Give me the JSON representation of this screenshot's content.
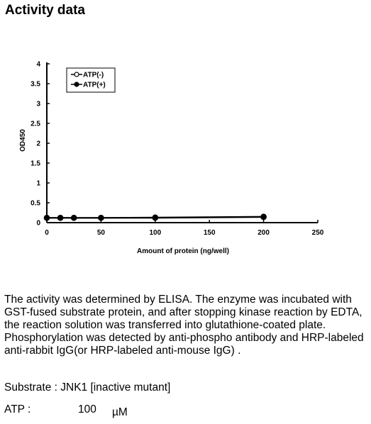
{
  "page": {
    "title": "Activity data"
  },
  "chart_data": {
    "type": "line",
    "x": [
      0,
      12.5,
      25,
      50,
      100,
      200
    ],
    "series": [
      {
        "name": "ATP(-)",
        "marker": "open-circle",
        "values": [
          0.12,
          0.12,
          0.12,
          0.12,
          0.12,
          0.14
        ]
      },
      {
        "name": "ATP(+)",
        "marker": "filled-circle",
        "values": [
          0.12,
          0.12,
          0.12,
          0.12,
          0.13,
          0.15
        ]
      }
    ],
    "xlabel": "Amount of protein (ng/well)",
    "ylabel": "OD450",
    "xlim": [
      0,
      250
    ],
    "ylim": [
      0,
      4
    ],
    "xticks": [
      "0",
      "50",
      "100",
      "150",
      "200",
      "250"
    ],
    "yticks": [
      "0",
      "0.5",
      "1",
      "1.5",
      "2",
      "2.5",
      "3",
      "3.5",
      "4"
    ],
    "grid": false,
    "legend": "top-left",
    "colors": {
      "line": "#000000"
    }
  },
  "description": "The activity was determined by ELISA. The enzyme was incubated with GST-fused substrate protein, and after stopping kinase reaction by EDTA, the reaction solution was transferred into glutathione-coated plate. Phosphorylation was detected by anti-phospho antibody and HRP-labeled anti-rabbit IgG(or HRP-labeled anti-mouse IgG) .",
  "substrate": "Substrate : JNK1 [inactive mutant]",
  "atp": {
    "label": "ATP :",
    "value": "100",
    "unit": "µM"
  }
}
